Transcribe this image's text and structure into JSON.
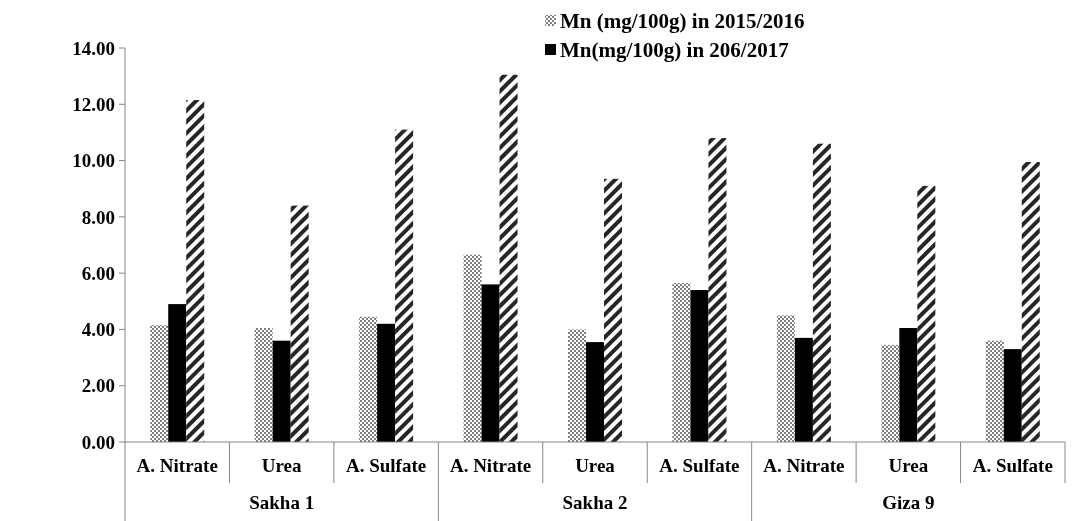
{
  "chart_data": {
    "type": "bar",
    "categories": [
      "A. Nitrate",
      "Urea",
      "A. Sulfate",
      "A. Nitrate",
      "Urea",
      "A. Sulfate",
      "A. Nitrate",
      "Urea",
      "A. Sulfate"
    ],
    "annotations": [
      "Sakha 1",
      "Sakha 2",
      "Giza 9"
    ],
    "series": [
      {
        "name": "Mn (mg/100g) in 2015/2016",
        "color": "#7f7f7f",
        "values": [
          4.15,
          4.05,
          4.45,
          6.65,
          4.0,
          5.65,
          4.5,
          3.45,
          3.6
        ]
      },
      {
        "name": "Mn(mg/100g) in 206/2017",
        "color": "#000000",
        "values": [
          4.9,
          3.6,
          4.2,
          5.6,
          3.55,
          5.4,
          3.7,
          4.05,
          3.3
        ]
      },
      {
        "color": "#262626",
        "values": [
          12.15,
          8.4,
          11.1,
          13.05,
          9.35,
          10.8,
          10.6,
          9.1,
          9.95
        ]
      }
    ],
    "ylim": [
      0,
      14
    ],
    "yticks": [
      {
        "value": 0,
        "label": "0.00"
      },
      {
        "value": 2,
        "label": "2.00"
      },
      {
        "value": 4,
        "label": "4.00"
      },
      {
        "value": 6,
        "label": "6.00"
      },
      {
        "value": 8,
        "label": "8.00"
      },
      {
        "value": 10,
        "label": "10.00"
      },
      {
        "value": 12,
        "label": "12.00"
      },
      {
        "value": 14,
        "label": "14.00"
      }
    ],
    "grid": false,
    "legend": "top right"
  }
}
